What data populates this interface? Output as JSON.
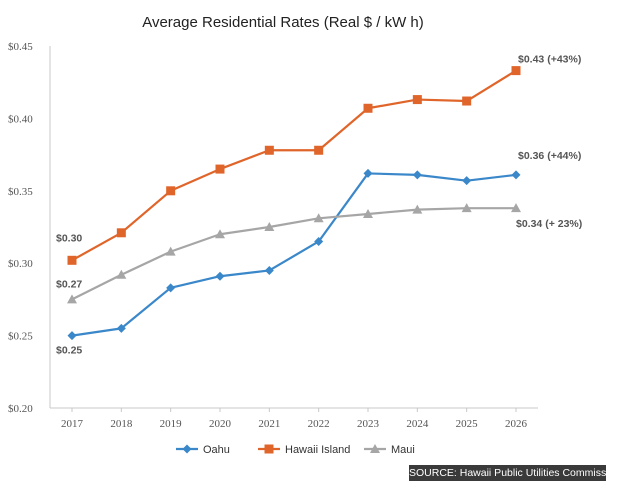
{
  "chart_data": {
    "type": "line",
    "title": "Average Residential Rates (Real $ / kW h)",
    "x": [
      "2017",
      "2018",
      "2019",
      "2020",
      "2021",
      "2022",
      "2023",
      "2024",
      "2025",
      "2026"
    ],
    "ylim": [
      0.2,
      0.45
    ],
    "yticks": [
      "$0.20",
      "$0.25",
      "$0.30",
      "$0.35",
      "$0.40",
      "$0.45"
    ],
    "ytick_values": [
      0.2,
      0.25,
      0.3,
      0.35,
      0.4,
      0.45
    ],
    "grid": false,
    "legend_position": "bottom",
    "series": [
      {
        "name": "Oahu",
        "color": "#3a87c9",
        "marker": "diamond",
        "values": [
          0.25,
          0.255,
          0.283,
          0.291,
          0.295,
          0.315,
          0.362,
          0.361,
          0.357,
          0.361
        ],
        "start_label": "$0.25",
        "end_label": "$0.36  (+44%)"
      },
      {
        "name": "Hawaii Island",
        "color": "#e0652a",
        "marker": "square",
        "values": [
          0.302,
          0.321,
          0.35,
          0.365,
          0.378,
          0.378,
          0.407,
          0.413,
          0.412,
          0.433
        ],
        "start_label": "$0.30",
        "end_label": "$0.43  (+43%)"
      },
      {
        "name": "Maui",
        "color": "#a6a6a6",
        "marker": "triangle",
        "values": [
          0.275,
          0.292,
          0.308,
          0.32,
          0.325,
          0.331,
          0.334,
          0.337,
          0.338,
          0.338
        ],
        "start_label": "$0.27",
        "end_label": "$0.34  (+ 23%)"
      }
    ]
  },
  "source": "SOURCE: Hawaii Public Utilities Commission"
}
